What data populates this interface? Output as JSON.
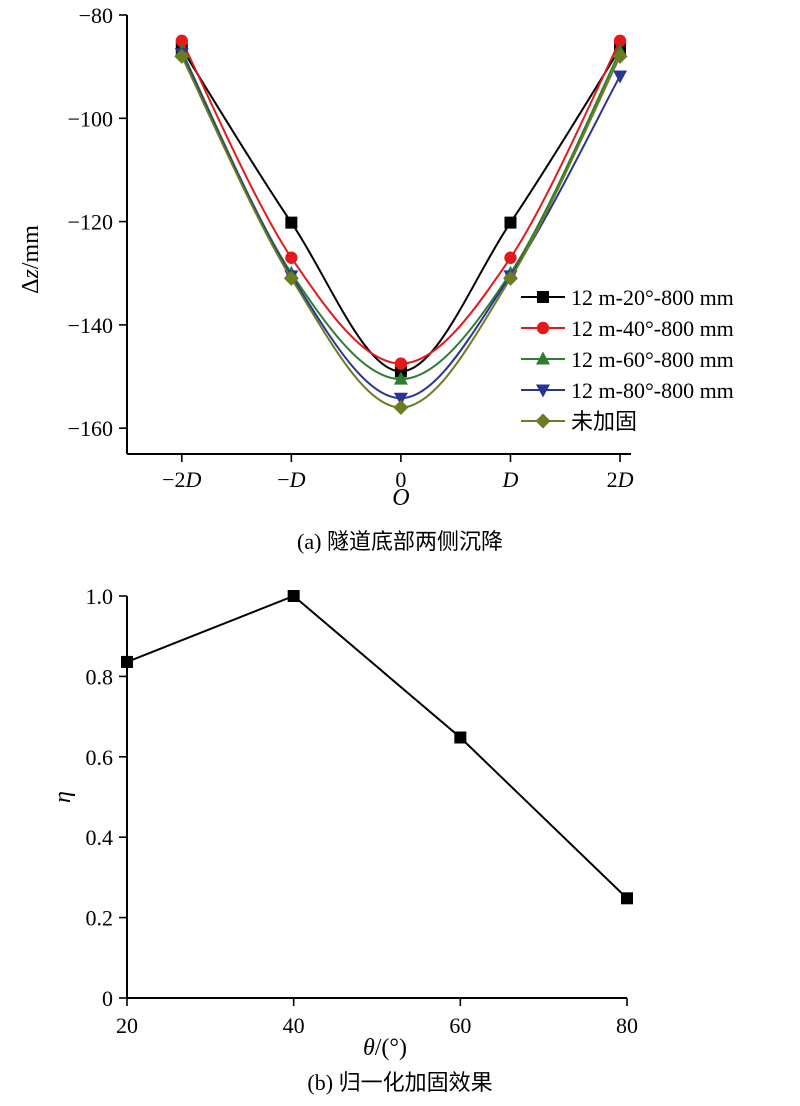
{
  "chart_data": [
    {
      "type": "line",
      "caption": "(a) 隧道底部两侧沉降",
      "xlabel": "O",
      "ylabel": "Δz/mm",
      "categories": [
        "−2D",
        "−D",
        "0",
        "D",
        "2D"
      ],
      "x": [
        -2,
        -1,
        0,
        1,
        2
      ],
      "xlim": [
        -2.5,
        2.1
      ],
      "ylim": [
        -165,
        -80
      ],
      "yticks": [
        -80,
        -100,
        -120,
        -140,
        -160
      ],
      "ytick_labels": [
        "−80",
        "−100",
        "−120",
        "−140",
        "−160"
      ],
      "legend_position": "right",
      "series": [
        {
          "name": "12 m-20°-800 mm",
          "color": "#000000",
          "marker": "square",
          "values": [
            -86.5,
            -120.2,
            -149.0,
            -120.2,
            -86.5
          ]
        },
        {
          "name": "12 m-40°-800 mm",
          "color": "#e31a1c",
          "marker": "circle",
          "values": [
            -85.0,
            -127.0,
            -147.5,
            -127.0,
            -85.0
          ]
        },
        {
          "name": "12 m-60°-800 mm",
          "color": "#2e7d32",
          "marker": "triangle-up",
          "values": [
            -87.0,
            -130.0,
            -150.5,
            -130.0,
            -87.0
          ]
        },
        {
          "name": "12 m-80°-800 mm",
          "color": "#283593",
          "marker": "triangle-down",
          "values": [
            -87.5,
            -130.5,
            -154.2,
            -130.5,
            -91.8
          ]
        },
        {
          "name": "未加固",
          "color": "#6b7d22",
          "marker": "diamond",
          "values": [
            -88.0,
            -131.0,
            -156.0,
            -131.0,
            -88.0
          ]
        }
      ]
    },
    {
      "type": "line",
      "caption": "(b) 归一化加固效果",
      "xlabel": "θ/(°)",
      "ylabel": "η",
      "x": [
        20,
        40,
        60,
        80
      ],
      "xlim": [
        20,
        80
      ],
      "ylim": [
        0,
        1.0
      ],
      "xticks": [
        "20",
        "40",
        "60",
        "80"
      ],
      "yticks": [
        "0",
        "0.2",
        "0.4",
        "0.6",
        "0.8",
        "1.0"
      ],
      "series": [
        {
          "color": "#000000",
          "marker": "square",
          "values": [
            0.836,
            1.0,
            0.648,
            0.248
          ]
        }
      ]
    }
  ]
}
